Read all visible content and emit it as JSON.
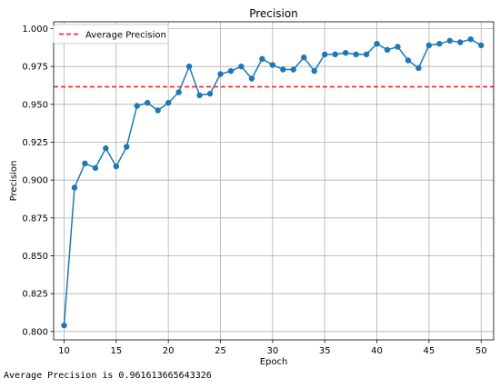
{
  "chart_data": {
    "type": "line",
    "title": "Precision",
    "xlabel": "Epoch",
    "ylabel": "Precision",
    "xlim": [
      9.0,
      51.2
    ],
    "ylim": [
      0.7945,
      1.0045
    ],
    "xticks": [
      10,
      15,
      20,
      25,
      30,
      35,
      40,
      45,
      50
    ],
    "yticks": [
      0.8,
      0.825,
      0.85,
      0.875,
      0.9,
      0.925,
      0.95,
      0.975,
      1.0
    ],
    "grid": true,
    "legend_position": "top-left",
    "series": [
      {
        "color": "#1f77b4",
        "marker": "circle",
        "x": [
          10,
          11,
          12,
          13,
          14,
          15,
          16,
          17,
          18,
          19,
          20,
          21,
          22,
          23,
          24,
          25,
          26,
          27,
          28,
          29,
          30,
          31,
          32,
          33,
          34,
          35,
          36,
          37,
          38,
          39,
          40,
          41,
          42,
          43,
          44,
          45,
          46,
          47,
          48,
          49,
          50
        ],
        "values": [
          0.804,
          0.895,
          0.911,
          0.908,
          0.921,
          0.909,
          0.922,
          0.949,
          0.951,
          0.946,
          0.951,
          0.958,
          0.975,
          0.956,
          0.957,
          0.97,
          0.972,
          0.975,
          0.967,
          0.98,
          0.976,
          0.973,
          0.973,
          0.981,
          0.972,
          0.983,
          0.983,
          0.984,
          0.983,
          0.983,
          0.99,
          0.986,
          0.988,
          0.979,
          0.974,
          0.989,
          0.99,
          0.992,
          0.991,
          0.993,
          0.989
        ]
      }
    ],
    "reference_line": {
      "name": "Average Precision",
      "value": 0.9616,
      "color": "#e41a1c",
      "style": "dashed"
    }
  },
  "output_text": "Average Precision is 0.961613665643326"
}
